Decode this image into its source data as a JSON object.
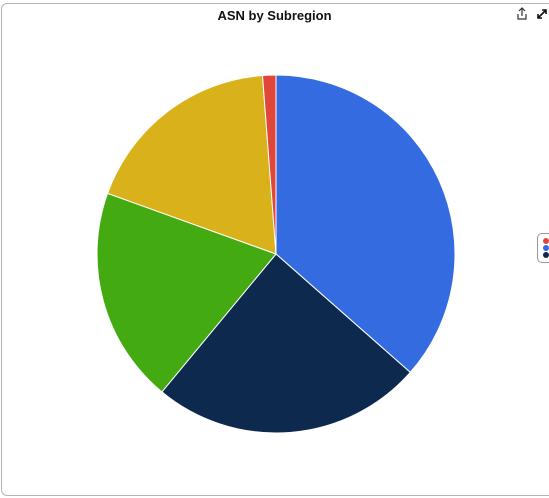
{
  "header": {
    "title": "ASN by Subregion"
  },
  "toolbar": {
    "share_icon": "share-icon",
    "expand_icon": "expand-icon"
  },
  "chart_data": {
    "type": "pie",
    "title": "ASN by Subregion",
    "slices": [
      {
        "value": 36.5,
        "color": "#356BE0"
      },
      {
        "value": 24.5,
        "color": "#0D2A4E"
      },
      {
        "value": 19.5,
        "color": "#44AA11"
      },
      {
        "value": 18.3,
        "color": "#D9B11A"
      },
      {
        "value": 1.2,
        "color": "#E0473A"
      }
    ],
    "start_angle_deg": 0,
    "direction": "clockwise",
    "legend": {
      "position": "right",
      "colors": [
        "#E0473A",
        "#356BE0",
        "#0D2A4E"
      ]
    }
  }
}
